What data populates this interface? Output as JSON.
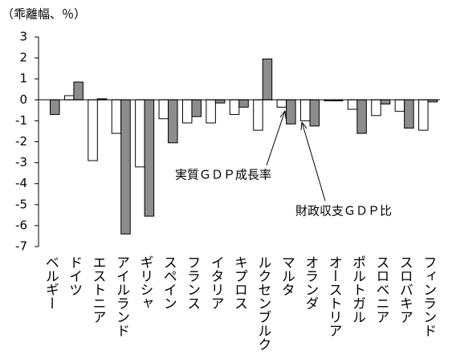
{
  "chart_data": {
    "type": "bar",
    "title": "（乖離幅、％）",
    "categories": [
      "ベルギー",
      "ドイツ",
      "エストニア",
      "アイルランド",
      "ギリシャ",
      "スペイン",
      "フランス",
      "イタリア",
      "キプロス",
      "ルクセンブルク",
      "マルタ",
      "オランダ",
      "オーストリア",
      "ポルトガル",
      "スロベニア",
      "スロバキア",
      "フィンランド"
    ],
    "series": [
      {
        "name": "実質ＧＤＰ成長率",
        "color": "#ffffff",
        "values": [
          0,
          0.2,
          -2.9,
          -1.6,
          -3.2,
          -0.9,
          -1.1,
          -1.1,
          -0.7,
          -1.45,
          -0.35,
          -1.0,
          -0.05,
          -0.45,
          -0.75,
          -0.55,
          -1.45
        ]
      },
      {
        "name": "財政収支ＧＤＰ比",
        "color": "#8c8c8c",
        "values": [
          -0.7,
          0.85,
          0.05,
          -6.4,
          -5.55,
          -2.05,
          -0.8,
          -0.15,
          -0.35,
          1.95,
          -1.15,
          -1.25,
          -0.05,
          -1.6,
          -0.2,
          -1.35,
          -0.1
        ]
      }
    ],
    "ylim": [
      -7,
      3
    ],
    "yticks": [
      -7,
      -6,
      -5,
      -4,
      -3,
      -2,
      -1,
      0,
      1,
      2,
      3
    ],
    "grid": false
  }
}
